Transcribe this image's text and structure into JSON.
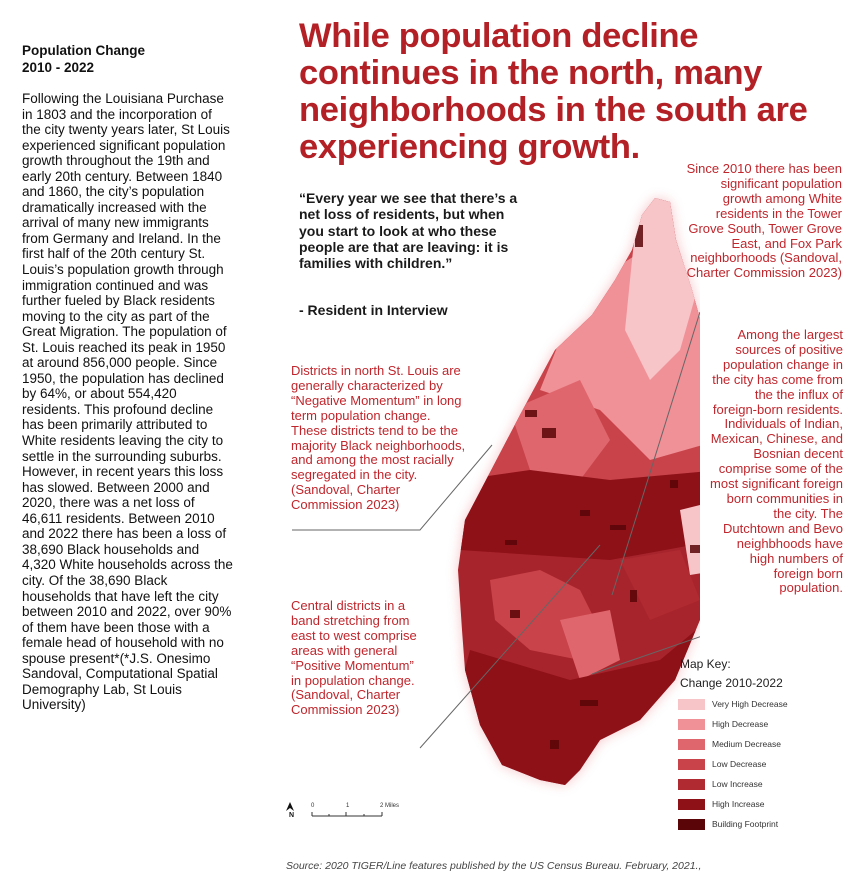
{
  "sidebar": {
    "title_line1": "Population Change",
    "title_line2": "2010 - 2022",
    "body": "Following the Louisiana Purchase in 1803 and the incorporation of the city twenty years later, St Louis experienced significant population growth throughout the 19th and early 20th century. Between 1840 and 1860, the city’s population dramatically increased with the arrival of many new immigrants from Germany and Ireland. In the first half of the 20th century St. Louis’s population growth through immigration continued and was further fueled by Black residents moving to the city as part of the Great Migration. The population of St. Louis reached its peak in 1950 at around 856,000 people. Since 1950, the population has declined by 64%, or about 554,420 residents. This profound decline has been primarily attributed to White residents leaving the city to settle in the surrounding suburbs. However, in recent years this loss has slowed. Between 2000 and 2020, there was a net loss of 46,611 residents. Between 2010 and 2022 there has been a loss of 38,690 Black households and 4,320 White households across the city. Of the 38,690 Black households that have left the city between 2010 and 2022, over 90% of them have been those with a female head of household with no spouse present*(*J.S. Onesimo Sandoval, Computational Spatial Demography Lab, St Louis University)"
  },
  "headline": "While population decline continues in the north, many neighborhoods in the south are experiencing growth.",
  "quote": {
    "text": "“Every year we see that there’s a net loss of residents, but when you start to look at who these people are that are leaving: it is families with children.”",
    "attribution": "- Resident in Interview"
  },
  "annotations": {
    "north": "Districts in north St. Louis are generally characterized by “Negative Momentum” in long term population change. These districts tend to be the majority Black neighborhoods, and among the most racially segregated in the city. (Sandoval, Charter Commission 2023)",
    "central": "Central districts in a band stretching from east to west comprise areas with general “Positive Momentum” in population change. (Sandoval, Charter Commission 2023)",
    "south_white": "Since 2010 there has been significant population growth among White residents in the Tower Grove South, Tower Grove East, and Fox Park neighborhoods (Sandoval, Charter Commission 2023)",
    "foreign_born": "Among the largest sources of positive population change in the city has come from the the influx of foreign-born residents. Individuals of Indian, Mexican, Chinese, and Bosnian decent comprise some of the most significant foreign born communities in the city. The Dutchtown and Bevo neighbhoods have high numbers of foreign born population."
  },
  "map_key": {
    "title_line1": "Map Key:",
    "title_line2": "Change 2010-2022",
    "items": [
      {
        "label": "Very High Decrease",
        "color": "#f7c5c8"
      },
      {
        "label": "High Decrease",
        "color": "#f09097"
      },
      {
        "label": "Medium Decrease",
        "color": "#e0666d"
      },
      {
        "label": "Low Decrease",
        "color": "#c9434a"
      },
      {
        "label": "Low Increase",
        "color": "#b02a31"
      },
      {
        "label": "High Increase",
        "color": "#8e1118"
      },
      {
        "label": "Building Footprint",
        "color": "#5a0508"
      }
    ]
  },
  "scale": {
    "labels": [
      "0",
      "1",
      "2 Miles"
    ],
    "north": "N"
  },
  "source": "Source: 2020 TIGER/Line features published by the US Census Bureau. February, 2021.,"
}
